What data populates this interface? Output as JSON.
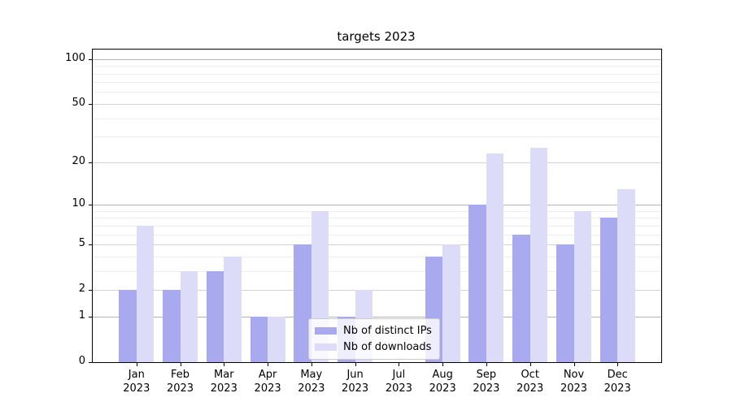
{
  "chart_data": {
    "type": "bar",
    "title": "targets 2023",
    "categories": [
      "Jan",
      "Feb",
      "Mar",
      "Apr",
      "May",
      "Jun",
      "Jul",
      "Aug",
      "Sep",
      "Oct",
      "Nov",
      "Dec"
    ],
    "x_year": "2023",
    "series": [
      {
        "name": "Nb of distinct IPs",
        "color": "#a9a9ef",
        "values": [
          2,
          2,
          3,
          1,
          5,
          1,
          0,
          4,
          10,
          6,
          5,
          8
        ]
      },
      {
        "name": "Nb of downloads",
        "color": "#dcdcf8",
        "values": [
          7,
          3,
          4,
          1,
          9,
          2,
          0,
          5,
          23,
          25,
          9,
          13
        ]
      }
    ],
    "xlabel": "",
    "ylabel": "",
    "yscale": "log1p",
    "ylim": [
      0,
      115
    ],
    "y_ticks": [
      0,
      1,
      2,
      5,
      10,
      20,
      50,
      100
    ],
    "y_emphasized_ticks": [
      1,
      10,
      100
    ],
    "y_minor_ticks": [
      3,
      4,
      6,
      7,
      8,
      9,
      30,
      40,
      60,
      70,
      80,
      90
    ],
    "grid": true,
    "legend_position": "lower center"
  }
}
